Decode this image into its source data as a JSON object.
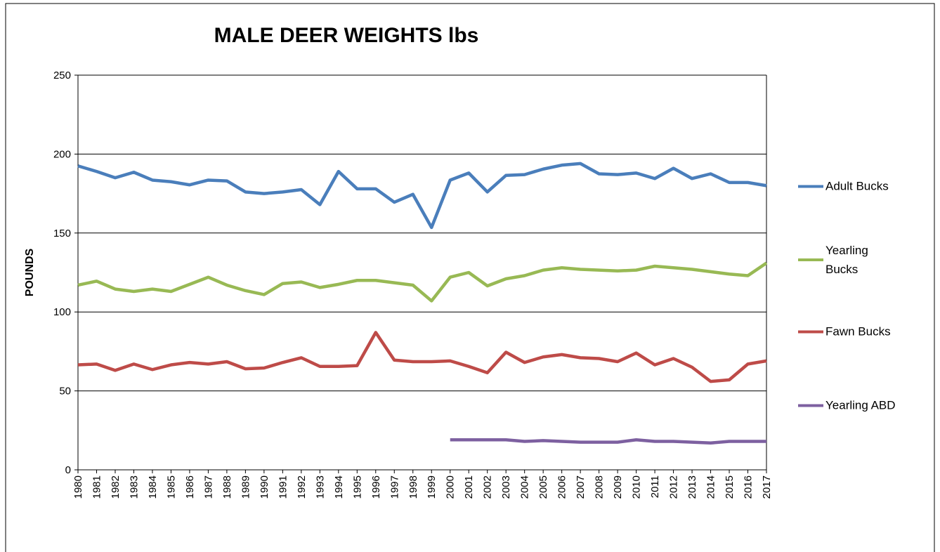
{
  "chart_data": {
    "type": "line",
    "title": "MALE DEER WEIGHTS lbs",
    "y_label": "POUNDS",
    "categories": [
      "1980",
      "1981",
      "1982",
      "1983",
      "1984",
      "1985",
      "1986",
      "1987",
      "1988",
      "1989",
      "1990",
      "1991",
      "1992",
      "1993",
      "1994",
      "1995",
      "1996",
      "1997",
      "1998",
      "1999",
      "2000",
      "2001",
      "2002",
      "2003",
      "2004",
      "2005",
      "2006",
      "2007",
      "2008",
      "2009",
      "2010",
      "2011",
      "2012",
      "2013",
      "2014",
      "2015",
      "2016",
      "2017"
    ],
    "series": [
      {
        "name": "Adult Bucks",
        "color": "#4a7ebb",
        "values": [
          192.5,
          189,
          185,
          188.5,
          183.5,
          182.5,
          180.5,
          183.5,
          183,
          176,
          175,
          176,
          177.5,
          168,
          189,
          178,
          178,
          169.5,
          174.5,
          153.5,
          183.5,
          188,
          176,
          186.5,
          187,
          190.5,
          193,
          194,
          187.5,
          187,
          188,
          184.5,
          191,
          184.5,
          187.5,
          182,
          182,
          180
        ]
      },
      {
        "name": "Yearling Bucks",
        "color": "#98b954",
        "values": [
          117,
          119.5,
          114.5,
          113,
          114.5,
          113,
          117.5,
          122,
          117,
          113.5,
          111,
          118,
          119,
          115.5,
          117.5,
          120,
          120,
          118.5,
          117,
          107,
          122,
          125,
          116.5,
          121,
          123,
          126.5,
          128,
          127,
          126.5,
          126,
          126.5,
          129,
          128,
          127,
          125.5,
          124,
          123,
          131
        ]
      },
      {
        "name": "Fawn Bucks",
        "color": "#be4b48",
        "values": [
          66.5,
          67,
          63,
          67,
          63.5,
          66.5,
          68,
          67,
          68.5,
          64,
          64.5,
          68,
          71,
          65.5,
          65.5,
          66,
          87,
          69.5,
          68.5,
          68.5,
          69,
          65.5,
          61.5,
          74.5,
          68,
          71.5,
          73,
          71,
          70.5,
          68.5,
          74,
          66.5,
          70.5,
          65,
          56,
          57,
          67,
          69
        ]
      },
      {
        "name": "Yearling ABD",
        "color": "#7d60a0",
        "values": [
          null,
          null,
          null,
          null,
          null,
          null,
          null,
          null,
          null,
          null,
          null,
          null,
          null,
          null,
          null,
          null,
          null,
          null,
          null,
          null,
          19,
          19,
          19,
          19,
          18,
          18.5,
          18,
          17.5,
          17.5,
          17.5,
          19,
          18,
          18,
          17.5,
          17,
          18,
          18,
          18
        ]
      }
    ],
    "ylim": [
      0,
      250
    ],
    "yticks": [
      0,
      50,
      100,
      150,
      200,
      250
    ],
    "grid": true,
    "legend": "right"
  }
}
